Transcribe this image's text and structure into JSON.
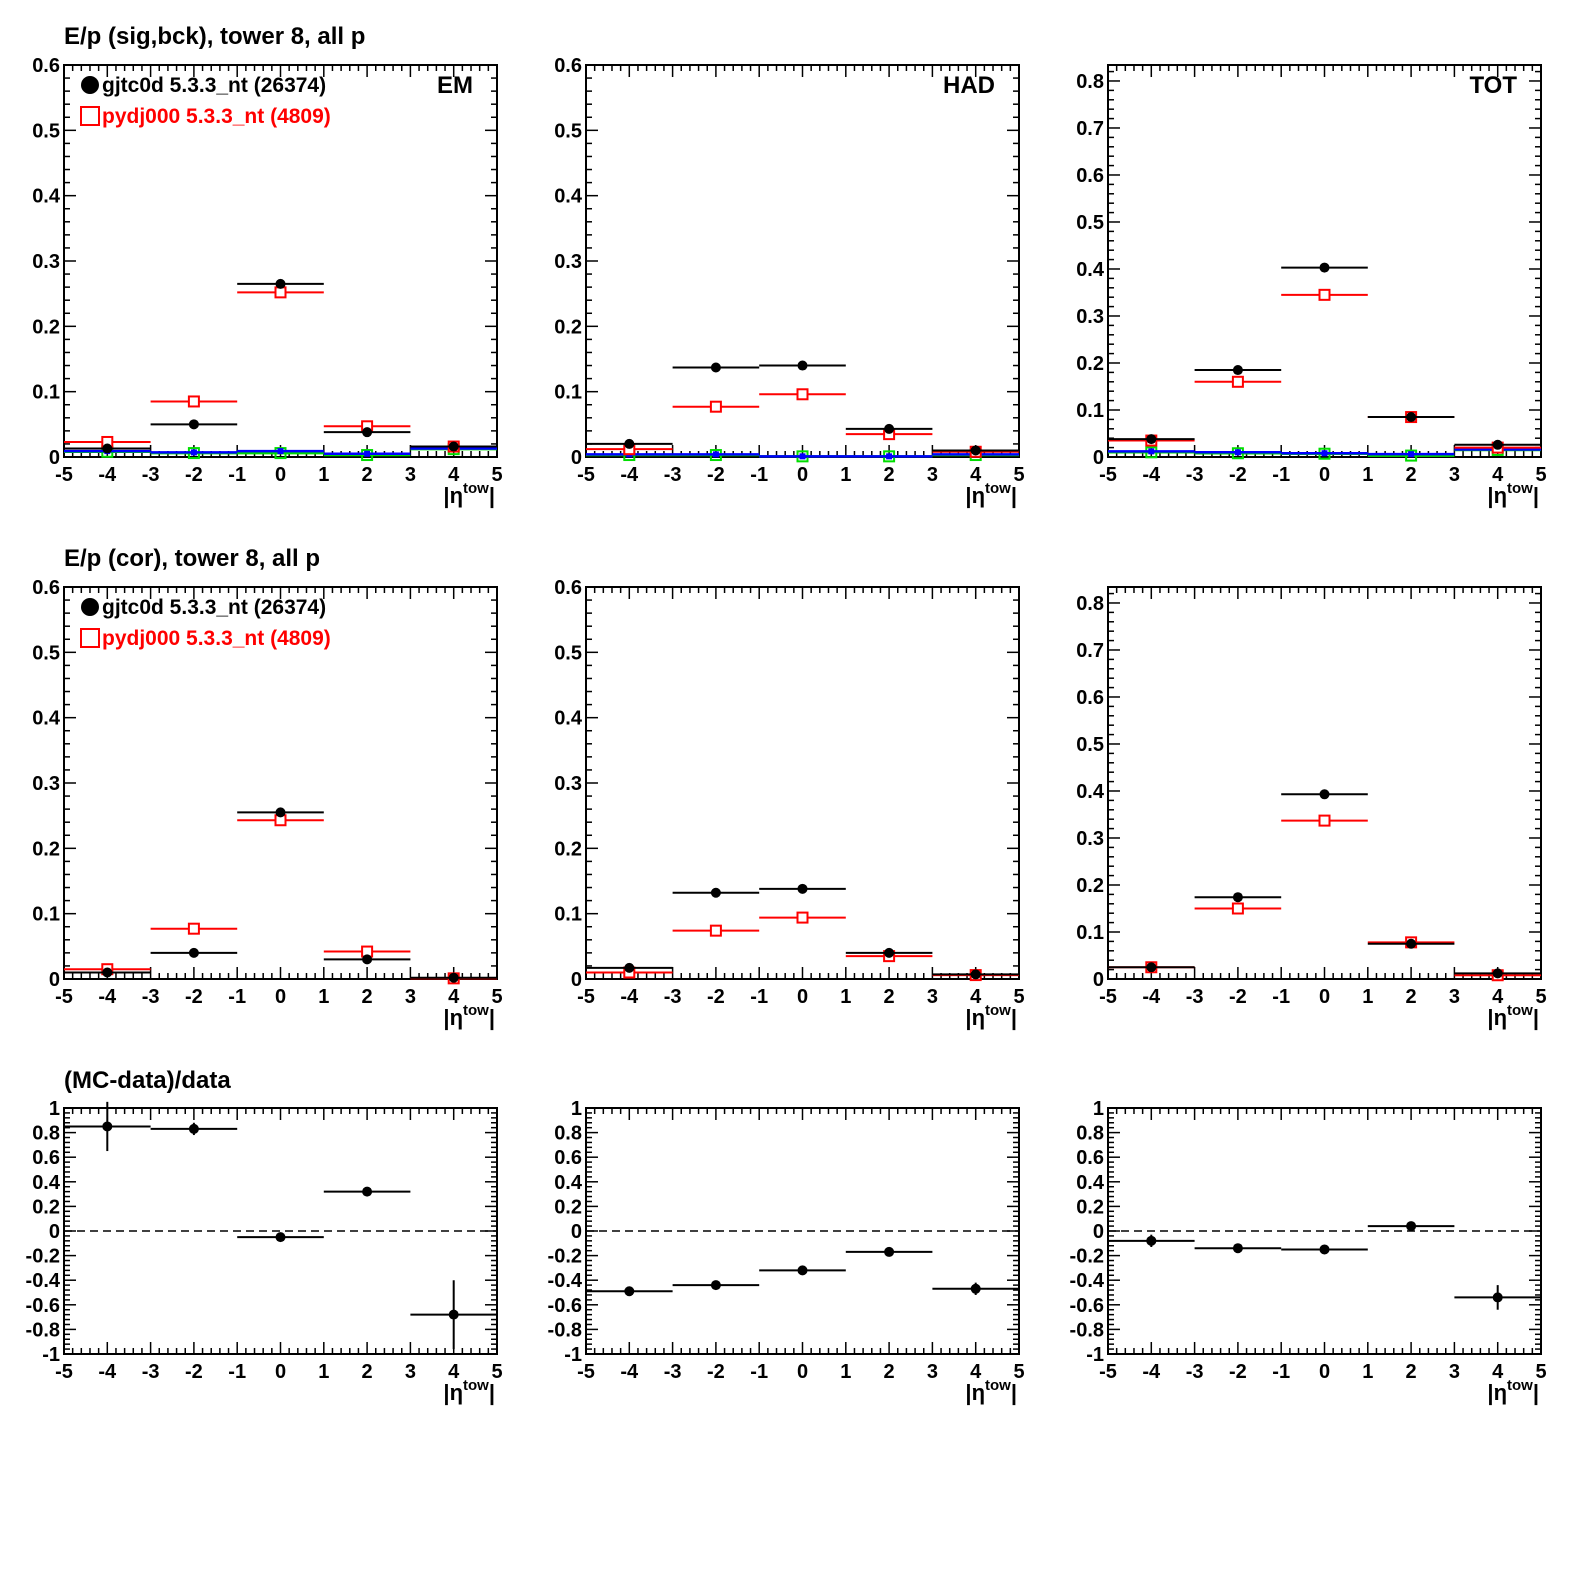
{
  "titles": [
    "E/p (sig,bck), tower 8, all p",
    "E/p (cor), tower 8, all p",
    "(MC-data)/data"
  ],
  "legend": {
    "data_label": "gjtc0d 5.3.3_nt (26374)",
    "mc_label": "pydj000 5.3.3_nt (4809)"
  },
  "colors": {
    "data": "#000000",
    "mc": "#ff0000",
    "green": "#00dd00",
    "blue": "#0000ff"
  },
  "chart_data": [
    {
      "type": "scatter",
      "row": 0,
      "col": 0,
      "label": "EM",
      "xlabel": "|η^tow|",
      "xlim": [
        -5,
        5
      ],
      "ylim": [
        0,
        0.6
      ],
      "ystep": 0.1,
      "legend": true,
      "x": [
        -4,
        -2,
        0,
        2,
        4
      ],
      "series": [
        {
          "name": "gjtc0d 5.3.3_nt (26374)",
          "style": "data",
          "values": [
            0.013,
            0.05,
            0.265,
            0.038,
            0.016
          ]
        },
        {
          "name": "pydj000 5.3.3_nt (4809)",
          "style": "mc",
          "values": [
            0.023,
            0.085,
            0.252,
            0.047,
            0.016
          ]
        },
        {
          "name": "blue",
          "style": "blue",
          "values": [
            0.009,
            0.007,
            0.009,
            0.005,
            0.013
          ]
        },
        {
          "name": "green",
          "style": "green",
          "values": [
            0.008,
            0.006,
            0.006,
            0.003,
            0.012
          ]
        }
      ]
    },
    {
      "type": "scatter",
      "row": 0,
      "col": 1,
      "label": "HAD",
      "xlabel": "|η^tow|",
      "xlim": [
        -5,
        5
      ],
      "ylim": [
        0,
        0.6
      ],
      "ystep": 0.1,
      "x": [
        -4,
        -2,
        0,
        2,
        4
      ],
      "series": [
        {
          "name": "gjtc0d 5.3.3_nt (26374)",
          "style": "data",
          "values": [
            0.02,
            0.137,
            0.14,
            0.043,
            0.01
          ]
        },
        {
          "name": "pydj000 5.3.3_nt (4809)",
          "style": "mc",
          "values": [
            0.012,
            0.077,
            0.096,
            0.035,
            0.008
          ]
        },
        {
          "name": "blue",
          "style": "blue",
          "values": [
            0.004,
            0.004,
            0.001,
            0.001,
            0.004
          ]
        },
        {
          "name": "green",
          "style": "green",
          "values": [
            0.003,
            0.003,
            0.001,
            0.001,
            0.003
          ]
        }
      ]
    },
    {
      "type": "scatter",
      "row": 0,
      "col": 2,
      "label": "TOT",
      "xlabel": "|η^tow|",
      "xlim": [
        -5,
        5
      ],
      "ylim": [
        0,
        0.834
      ],
      "ystep": 0.1,
      "x": [
        -4,
        -2,
        0,
        2,
        4
      ],
      "series": [
        {
          "name": "gjtc0d 5.3.3_nt (26374)",
          "style": "data",
          "values": [
            0.038,
            0.185,
            0.403,
            0.085,
            0.026
          ]
        },
        {
          "name": "pydj000 5.3.3_nt (4809)",
          "style": "mc",
          "values": [
            0.035,
            0.16,
            0.345,
            0.085,
            0.02
          ]
        },
        {
          "name": "blue",
          "style": "blue",
          "values": [
            0.012,
            0.01,
            0.008,
            0.006,
            0.016
          ]
        },
        {
          "name": "green",
          "style": "green",
          "values": [
            0.01,
            0.008,
            0.007,
            0.003,
            0.015
          ]
        }
      ]
    },
    {
      "type": "scatter",
      "row": 1,
      "col": 0,
      "xlabel": "|η^tow|",
      "xlim": [
        -5,
        5
      ],
      "ylim": [
        0,
        0.6
      ],
      "ystep": 0.1,
      "legend": true,
      "x": [
        -4,
        -2,
        0,
        2,
        4
      ],
      "series": [
        {
          "name": "gjtc0d 5.3.3_nt (26374)",
          "style": "data",
          "values": [
            0.01,
            0.04,
            0.255,
            0.03,
            0.002
          ]
        },
        {
          "name": "pydj000 5.3.3_nt (4809)",
          "style": "mc",
          "values": [
            0.015,
            0.077,
            0.243,
            0.042,
            0.001
          ]
        }
      ]
    },
    {
      "type": "scatter",
      "row": 1,
      "col": 1,
      "xlabel": "|η^tow|",
      "xlim": [
        -5,
        5
      ],
      "ylim": [
        0,
        0.6
      ],
      "ystep": 0.1,
      "x": [
        -4,
        -2,
        0,
        2,
        4
      ],
      "series": [
        {
          "name": "gjtc0d 5.3.3_nt (26374)",
          "style": "data",
          "values": [
            0.017,
            0.132,
            0.138,
            0.04,
            0.007
          ]
        },
        {
          "name": "pydj000 5.3.3_nt (4809)",
          "style": "mc",
          "values": [
            0.01,
            0.074,
            0.094,
            0.035,
            0.006
          ]
        }
      ]
    },
    {
      "type": "scatter",
      "row": 1,
      "col": 2,
      "xlabel": "|η^tow|",
      "xlim": [
        -5,
        5
      ],
      "ylim": [
        0,
        0.834
      ],
      "ystep": 0.1,
      "x": [
        -4,
        -2,
        0,
        2,
        4
      ],
      "series": [
        {
          "name": "gjtc0d 5.3.3_nt (26374)",
          "style": "data",
          "values": [
            0.025,
            0.174,
            0.393,
            0.075,
            0.012
          ]
        },
        {
          "name": "pydj000 5.3.3_nt (4809)",
          "style": "mc",
          "values": [
            0.025,
            0.15,
            0.337,
            0.078,
            0.008
          ]
        }
      ]
    },
    {
      "type": "scatter",
      "row": 2,
      "col": 0,
      "xlabel": "|η^tow|",
      "xlim": [
        -5,
        5
      ],
      "ylim": [
        -1,
        1
      ],
      "ystep": 0.2,
      "zero_line": true,
      "x": [
        -4,
        -2,
        0,
        2,
        4
      ],
      "series": [
        {
          "name": "ratio",
          "style": "data",
          "values": [
            0.85,
            0.83,
            -0.05,
            0.32,
            -0.68
          ],
          "errors": [
            0.2,
            0.05,
            0.02,
            0.03,
            0.28
          ]
        }
      ]
    },
    {
      "type": "scatter",
      "row": 2,
      "col": 1,
      "xlabel": "|η^tow|",
      "xlim": [
        -5,
        5
      ],
      "ylim": [
        -1,
        1
      ],
      "ystep": 0.2,
      "zero_line": true,
      "x": [
        -4,
        -2,
        0,
        2,
        4
      ],
      "series": [
        {
          "name": "ratio",
          "style": "data",
          "values": [
            -0.49,
            -0.44,
            -0.32,
            -0.17,
            -0.47
          ],
          "errors": [
            0.02,
            0.02,
            0.02,
            0.02,
            0.05
          ]
        }
      ]
    },
    {
      "type": "scatter",
      "row": 2,
      "col": 2,
      "xlabel": "|η^tow|",
      "xlim": [
        -5,
        5
      ],
      "ylim": [
        -1,
        1
      ],
      "ystep": 0.2,
      "zero_line": true,
      "x": [
        -4,
        -2,
        0,
        2,
        4
      ],
      "series": [
        {
          "name": "ratio",
          "style": "data",
          "values": [
            -0.08,
            -0.14,
            -0.15,
            0.04,
            -0.54
          ],
          "errors": [
            0.05,
            0.02,
            0.02,
            0.03,
            0.1
          ]
        }
      ]
    }
  ]
}
